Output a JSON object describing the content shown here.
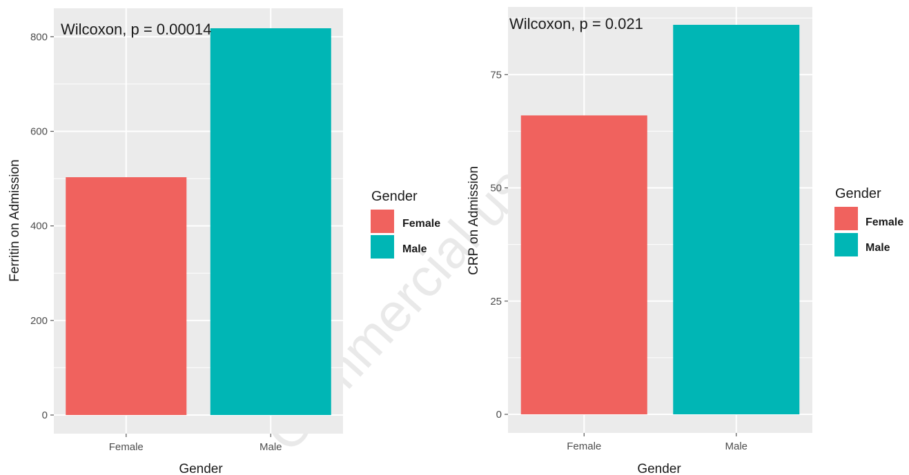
{
  "watermark": "Commercial use only",
  "chart_data": [
    {
      "type": "bar",
      "categories": [
        "Female",
        "Male"
      ],
      "values": [
        503,
        818
      ],
      "colors": [
        "#f0625e",
        "#00b6b5"
      ],
      "annotation": "Wilcoxon, p = 0.00014",
      "xlabel": "Gender",
      "ylabel": "Ferritin on Admission",
      "ylim": [
        0,
        860
      ],
      "yticks": [
        0,
        200,
        400,
        600,
        800
      ],
      "grid": true,
      "legend": {
        "title": "Gender",
        "position": "right",
        "entries": [
          "Female",
          "Male"
        ]
      }
    },
    {
      "type": "bar",
      "categories": [
        "Female",
        "Male"
      ],
      "values": [
        66,
        86
      ],
      "colors": [
        "#f0625e",
        "#00b6b5"
      ],
      "annotation": "Wilcoxon, p = 0.021",
      "xlabel": "Gender",
      "ylabel": "CRP on Admission",
      "ylim": [
        0,
        90
      ],
      "yticks": [
        0,
        25,
        50,
        75
      ],
      "grid": true,
      "legend": {
        "title": "Gender",
        "position": "right",
        "entries": [
          "Female",
          "Male"
        ]
      }
    }
  ]
}
